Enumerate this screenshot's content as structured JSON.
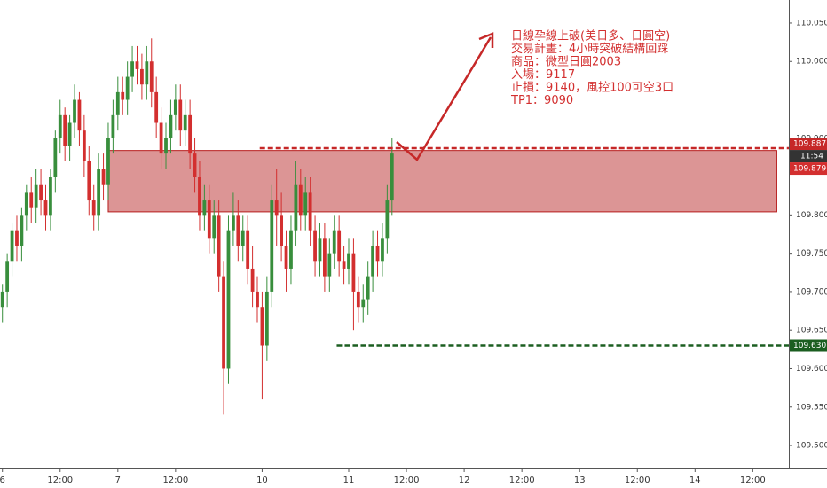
{
  "chart_data": {
    "type": "candlestick",
    "annotation": [
      "日線孕線上破(美日多、日圓空)",
      "交易計畫：4小時突破結構回踩",
      "商品：微型日圓2003",
      "入場：9117",
      "止損：9140，風控100可空3口",
      "TP1：9090"
    ],
    "x": [
      0,
      1,
      2,
      3,
      4,
      5,
      6,
      7,
      8,
      9,
      10,
      11,
      12,
      13,
      14,
      15,
      16,
      17,
      18,
      19,
      20,
      21,
      22,
      23,
      24,
      25,
      26,
      27,
      28,
      29,
      30,
      31,
      32,
      33,
      34,
      35,
      36,
      37,
      38,
      39,
      40,
      41,
      42,
      43,
      44,
      45,
      46,
      47,
      48,
      49,
      50,
      51,
      52,
      53,
      54,
      55,
      56,
      57,
      58,
      59,
      60,
      61,
      62,
      63,
      64,
      65,
      66,
      67,
      68,
      69,
      70,
      71,
      72,
      73,
      74,
      75,
      76,
      77,
      78,
      79,
      80,
      81
    ],
    "open": [
      109.68,
      109.7,
      109.74,
      109.78,
      109.76,
      109.8,
      109.83,
      109.81,
      109.84,
      109.82,
      109.8,
      109.85,
      109.9,
      109.93,
      109.89,
      109.92,
      109.95,
      109.91,
      109.87,
      109.82,
      109.8,
      109.86,
      109.84,
      109.9,
      109.93,
      109.96,
      109.95,
      109.98,
      110.0,
      109.99,
      109.97,
      110.0,
      109.96,
      109.92,
      109.88,
      109.9,
      109.93,
      109.95,
      109.91,
      109.93,
      109.88,
      109.85,
      109.8,
      109.82,
      109.77,
      109.8,
      109.72,
      109.6,
      109.78,
      109.8,
      109.76,
      109.78,
      109.73,
      109.7,
      109.68,
      109.63,
      109.7,
      109.82,
      109.8,
      109.76,
      109.73,
      109.78,
      109.84,
      109.8,
      109.83,
      109.78,
      109.74,
      109.77,
      109.72,
      109.75,
      109.78,
      109.74,
      109.73,
      109.75,
      109.7,
      109.68,
      109.69,
      109.72,
      109.76,
      109.74,
      109.77,
      109.82
    ],
    "high": [
      109.71,
      109.75,
      109.79,
      109.8,
      109.81,
      109.84,
      109.85,
      109.86,
      109.86,
      109.84,
      109.86,
      109.91,
      109.95,
      109.94,
      109.93,
      109.97,
      109.96,
      109.93,
      109.89,
      109.84,
      109.88,
      109.88,
      109.92,
      109.95,
      109.98,
      109.98,
      110.0,
      110.02,
      110.02,
      110.01,
      110.02,
      110.03,
      109.98,
      109.94,
      109.92,
      109.95,
      109.97,
      109.97,
      109.95,
      109.95,
      109.9,
      109.87,
      109.84,
      109.84,
      109.82,
      109.82,
      109.74,
      109.8,
      109.83,
      109.82,
      109.8,
      109.8,
      109.76,
      109.72,
      109.7,
      109.72,
      109.84,
      109.86,
      109.83,
      109.78,
      109.8,
      109.87,
      109.86,
      109.85,
      109.85,
      109.8,
      109.79,
      109.79,
      109.77,
      109.8,
      109.8,
      109.76,
      109.77,
      109.77,
      109.72,
      109.71,
      109.74,
      109.78,
      109.78,
      109.79,
      109.84,
      109.9
    ],
    "low": [
      109.66,
      109.68,
      109.72,
      109.74,
      109.74,
      109.78,
      109.79,
      109.79,
      109.8,
      109.78,
      109.78,
      109.83,
      109.88,
      109.87,
      109.87,
      109.9,
      109.89,
      109.85,
      109.8,
      109.78,
      109.78,
      109.82,
      109.82,
      109.88,
      109.91,
      109.93,
      109.93,
      109.96,
      109.97,
      109.95,
      109.95,
      109.94,
      109.9,
      109.86,
      109.86,
      109.88,
      109.91,
      109.89,
      109.89,
      109.86,
      109.83,
      109.78,
      109.78,
      109.75,
      109.75,
      109.7,
      109.54,
      109.58,
      109.76,
      109.74,
      109.74,
      109.71,
      109.68,
      109.66,
      109.56,
      109.61,
      109.68,
      109.76,
      109.74,
      109.7,
      109.71,
      109.76,
      109.78,
      109.78,
      109.76,
      109.72,
      109.72,
      109.7,
      109.7,
      109.73,
      109.72,
      109.71,
      109.71,
      109.65,
      109.66,
      109.66,
      109.67,
      109.7,
      109.72,
      109.72,
      109.75,
      109.8
    ],
    "close": [
      109.7,
      109.74,
      109.78,
      109.76,
      109.8,
      109.83,
      109.81,
      109.84,
      109.82,
      109.8,
      109.85,
      109.9,
      109.93,
      109.89,
      109.92,
      109.95,
      109.91,
      109.87,
      109.82,
      109.8,
      109.86,
      109.84,
      109.9,
      109.93,
      109.96,
      109.95,
      109.98,
      110.0,
      109.99,
      109.97,
      110.0,
      109.96,
      109.92,
      109.88,
      109.9,
      109.93,
      109.95,
      109.91,
      109.93,
      109.88,
      109.85,
      109.8,
      109.82,
      109.77,
      109.8,
      109.72,
      109.6,
      109.78,
      109.8,
      109.76,
      109.78,
      109.73,
      109.7,
      109.68,
      109.63,
      109.7,
      109.82,
      109.8,
      109.76,
      109.73,
      109.78,
      109.84,
      109.8,
      109.83,
      109.78,
      109.74,
      109.77,
      109.72,
      109.75,
      109.78,
      109.74,
      109.73,
      109.75,
      109.7,
      109.68,
      109.69,
      109.72,
      109.76,
      109.74,
      109.77,
      109.82,
      109.88
    ],
    "up_color": "#388e3c",
    "down_color": "#d32f2f",
    "xlim": [
      -0.5,
      163.5
    ],
    "xticks": [
      {
        "value": 0,
        "label": "6"
      },
      {
        "value": 12,
        "label": "12:00"
      },
      {
        "value": 24,
        "label": "7"
      },
      {
        "value": 36,
        "label": "12:00"
      },
      {
        "value": 54,
        "label": "10"
      },
      {
        "value": 72,
        "label": "11"
      },
      {
        "value": 84,
        "label": "12:00"
      },
      {
        "value": 96,
        "label": "12"
      },
      {
        "value": 108,
        "label": "12:00"
      },
      {
        "value": 120,
        "label": "13"
      },
      {
        "value": 132,
        "label": "12:00"
      },
      {
        "value": 144,
        "label": "14"
      },
      {
        "value": 156,
        "label": "12:00"
      }
    ],
    "ylim": [
      109.47,
      110.08
    ],
    "yticks": [
      {
        "value": 109.5,
        "label": "109.500"
      },
      {
        "value": 109.55,
        "label": "109.550"
      },
      {
        "value": 109.6,
        "label": "109.600"
      },
      {
        "value": 109.65,
        "label": "109.650"
      },
      {
        "value": 109.7,
        "label": "109.700"
      },
      {
        "value": 109.75,
        "label": "109.750"
      },
      {
        "value": 109.8,
        "label": "109.800"
      },
      {
        "value": 109.9,
        "label": "109.900"
      },
      {
        "value": 110,
        "label": "110.000"
      },
      {
        "value": 110.05,
        "label": "110.050"
      }
    ],
    "zone": {
      "top": 109.884,
      "bottom": 109.804,
      "x_start": 22,
      "x_end": 161,
      "color": "#d88a8a"
    },
    "stop_line": {
      "value": 109.887,
      "x_start": 53.5,
      "color": "#c62828"
    },
    "target_line": {
      "value": {
        "value": 109.63,
        "label": "109.630"
      },
      "x_start": 69.5,
      "color": "#1b5e20"
    },
    "price_label": 109.879,
    "time_label": "11:54"
  }
}
